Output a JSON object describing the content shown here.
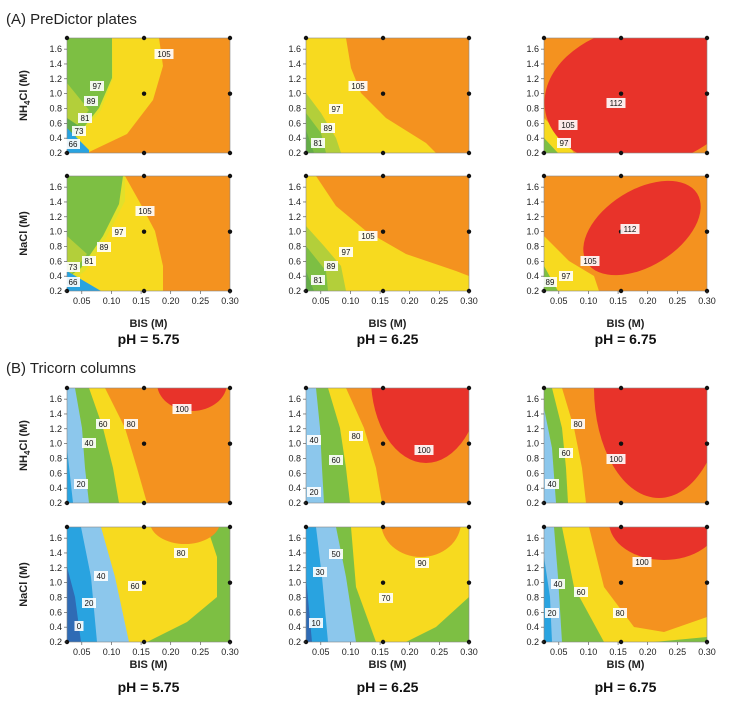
{
  "sections": [
    {
      "title": "(A) PreDictor plates",
      "row_labels": [
        "NH4Cl (M)",
        "NaCl (M)"
      ]
    },
    {
      "title": "(B) Tricorn columns",
      "row_labels": [
        "NH4Cl (M)",
        "NaCl (M)"
      ]
    }
  ],
  "ph_labels": [
    "pH = 5.75",
    "pH = 6.25",
    "pH = 6.75"
  ],
  "x_axis_label": "BIS (M)",
  "x_ticks": [
    "0.05",
    "0.10",
    "0.15",
    "0.20",
    "0.25",
    "0.30"
  ],
  "y_ticks": [
    "0.2",
    "0.4",
    "0.6",
    "0.8",
    "1.0",
    "1.2",
    "1.4",
    "1.6"
  ],
  "colors": {
    "blue_dark": "#2f6bb5",
    "blue": "#29a3e0",
    "blue_light": "#8cc7ec",
    "green_dark": "#64ad48",
    "green": "#7dbf43",
    "green_light": "#b3cf3a",
    "yellow": "#f7da1f",
    "yellow_green": "#e2e02a",
    "orange": "#f4921f",
    "red": "#e8332a"
  },
  "chart_data": [
    {
      "type": "contour",
      "section": "A",
      "row": "NH4Cl",
      "pH": "5.75",
      "xlim": [
        0.025,
        0.3
      ],
      "ylim": [
        0.2,
        1.75
      ],
      "levels": [
        "66",
        "73",
        "81",
        "89",
        "97",
        "105"
      ]
    },
    {
      "type": "contour",
      "section": "A",
      "row": "NH4Cl",
      "pH": "6.25",
      "xlim": [
        0.025,
        0.3
      ],
      "ylim": [
        0.2,
        1.75
      ],
      "levels": [
        "81",
        "89",
        "97",
        "105"
      ]
    },
    {
      "type": "contour",
      "section": "A",
      "row": "NH4Cl",
      "pH": "6.75",
      "xlim": [
        0.025,
        0.3
      ],
      "ylim": [
        0.2,
        1.75
      ],
      "levels": [
        "97",
        "105",
        "112"
      ]
    },
    {
      "type": "contour",
      "section": "A",
      "row": "NaCl",
      "pH": "5.75",
      "xlim": [
        0.025,
        0.3
      ],
      "ylim": [
        0.2,
        1.75
      ],
      "levels": [
        "66",
        "73",
        "81",
        "89",
        "97",
        "105"
      ]
    },
    {
      "type": "contour",
      "section": "A",
      "row": "NaCl",
      "pH": "6.25",
      "xlim": [
        0.025,
        0.3
      ],
      "ylim": [
        0.2,
        1.75
      ],
      "levels": [
        "81",
        "89",
        "97",
        "105"
      ]
    },
    {
      "type": "contour",
      "section": "A",
      "row": "NaCl",
      "pH": "6.75",
      "xlim": [
        0.025,
        0.3
      ],
      "ylim": [
        0.2,
        1.75
      ],
      "levels": [
        "89",
        "97",
        "105",
        "112"
      ]
    },
    {
      "type": "contour",
      "section": "B",
      "row": "NH4Cl",
      "pH": "5.75",
      "xlim": [
        0.025,
        0.3
      ],
      "ylim": [
        0.2,
        1.75
      ],
      "levels": [
        "20",
        "40",
        "60",
        "80",
        "100"
      ]
    },
    {
      "type": "contour",
      "section": "B",
      "row": "NH4Cl",
      "pH": "6.25",
      "xlim": [
        0.025,
        0.3
      ],
      "ylim": [
        0.2,
        1.75
      ],
      "levels": [
        "20",
        "40",
        "60",
        "80",
        "100"
      ]
    },
    {
      "type": "contour",
      "section": "B",
      "row": "NH4Cl",
      "pH": "6.75",
      "xlim": [
        0.025,
        0.3
      ],
      "ylim": [
        0.2,
        1.75
      ],
      "levels": [
        "40",
        "60",
        "80",
        "100"
      ]
    },
    {
      "type": "contour",
      "section": "B",
      "row": "NaCl",
      "pH": "5.75",
      "xlim": [
        0.025,
        0.3
      ],
      "ylim": [
        0.2,
        1.75
      ],
      "levels": [
        "0",
        "20",
        "40",
        "60",
        "80"
      ]
    },
    {
      "type": "contour",
      "section": "B",
      "row": "NaCl",
      "pH": "6.25",
      "xlim": [
        0.025,
        0.3
      ],
      "ylim": [
        0.2,
        1.75
      ],
      "levels": [
        "10",
        "30",
        "50",
        "70",
        "90"
      ]
    },
    {
      "type": "contour",
      "section": "B",
      "row": "NaCl",
      "pH": "6.75",
      "xlim": [
        0.025,
        0.3
      ],
      "ylim": [
        0.2,
        1.75
      ],
      "levels": [
        "20",
        "40",
        "60",
        "80",
        "100"
      ]
    }
  ],
  "design_points": [
    [
      0.025,
      0.2
    ],
    [
      0.025,
      1.75
    ],
    [
      0.155,
      0.2
    ],
    [
      0.155,
      1.0
    ],
    [
      0.155,
      1.75
    ],
    [
      0.3,
      0.2
    ],
    [
      0.3,
      1.0
    ],
    [
      0.3,
      1.75
    ]
  ]
}
